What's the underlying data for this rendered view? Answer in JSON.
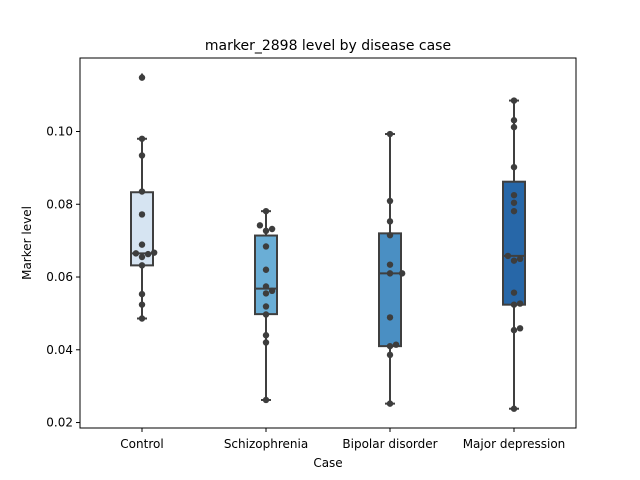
{
  "chart_data": {
    "type": "box",
    "title": "marker_2898 level by disease case",
    "xlabel": "Case",
    "ylabel": "Marker level",
    "ylim": [
      0.0185,
      0.1202
    ],
    "yticks": [
      0.02,
      0.04,
      0.06,
      0.08,
      0.1
    ],
    "ytick_labels": [
      "0.02",
      "0.04",
      "0.06",
      "0.08",
      "0.10"
    ],
    "grid": false,
    "categories": [
      "Control",
      "Schizophrenia",
      "Bipolar disorder",
      "Major depression"
    ],
    "colors": [
      "#d6e4f2",
      "#6aaed6",
      "#4a8fc3",
      "#2767a8"
    ],
    "boxes": [
      {
        "q1": 0.0632,
        "median": 0.0665,
        "q3": 0.0833,
        "whislo": 0.0486,
        "whishi": 0.098,
        "fliers": [
          0.115
        ]
      },
      {
        "q1": 0.0498,
        "median": 0.0568,
        "q3": 0.0714,
        "whislo": 0.0262,
        "whishi": 0.0781,
        "fliers": []
      },
      {
        "q1": 0.041,
        "median": 0.061,
        "q3": 0.072,
        "whislo": 0.0252,
        "whishi": 0.0993,
        "fliers": []
      },
      {
        "q1": 0.0524,
        "median": 0.0658,
        "q3": 0.0862,
        "whislo": 0.0238,
        "whishi": 0.1085,
        "fliers": []
      }
    ],
    "points": [
      [
        0.1148,
        0.098,
        0.0934,
        0.0835,
        0.0772,
        0.0689,
        0.0667,
        0.0663,
        0.0655,
        0.0665,
        0.0632,
        0.0553,
        0.0524,
        0.0486
      ],
      [
        0.0781,
        0.0742,
        0.0732,
        0.0727,
        0.0684,
        0.062,
        0.0574,
        0.0562,
        0.0555,
        0.0519,
        0.0497,
        0.044,
        0.042,
        0.0262
      ],
      [
        0.0993,
        0.0809,
        0.0753,
        0.0715,
        0.0634,
        0.061,
        0.061,
        0.0489,
        0.0414,
        0.041,
        0.0386,
        0.0252
      ],
      [
        0.1085,
        0.1031,
        0.1012,
        0.0902,
        0.0825,
        0.0804,
        0.0781,
        0.0658,
        0.065,
        0.0645,
        0.0557,
        0.0527,
        0.0524,
        0.0459,
        0.0454,
        0.0238
      ]
    ]
  }
}
